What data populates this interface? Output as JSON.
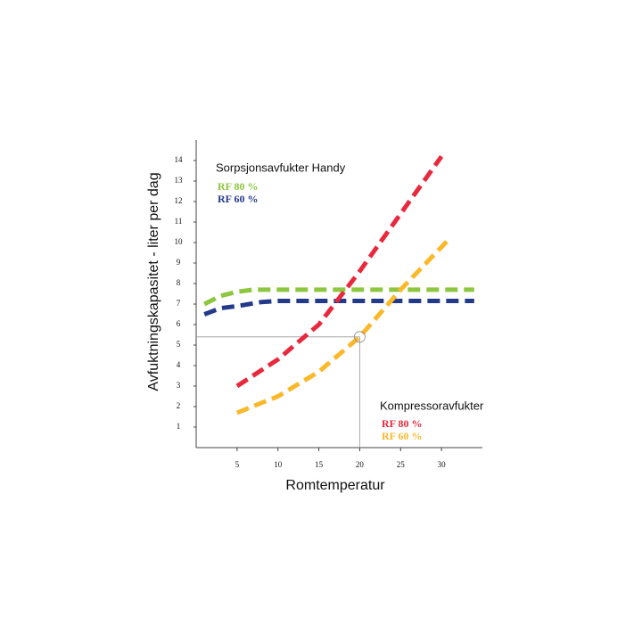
{
  "chart_data": {
    "type": "line",
    "x_label": "Romtemperatur",
    "y_label": "Avfuktningskapasitet  - liter per dag",
    "xlim": [
      0,
      35
    ],
    "ylim": [
      0,
      15
    ],
    "xticks": [
      5,
      10,
      15,
      20,
      25,
      30
    ],
    "yticks": [
      1,
      2,
      3,
      4,
      5,
      6,
      7,
      8,
      9,
      10,
      11,
      12,
      13,
      14
    ],
    "groups": [
      {
        "title": "Sorpsjonsavfukter Handy",
        "series": [
          {
            "name": "RF 80 %",
            "color": "#8dc63f",
            "x": [
              1,
              3,
              5,
              7,
              10,
              15,
              20,
              25,
              30,
              34
            ],
            "values": [
              7.0,
              7.4,
              7.6,
              7.7,
              7.7,
              7.7,
              7.7,
              7.7,
              7.7,
              7.7
            ]
          },
          {
            "name": "RF 60 %",
            "color": "#233a8b",
            "x": [
              1,
              3,
              5,
              8,
              10,
              15,
              20,
              25,
              30,
              34
            ],
            "values": [
              6.5,
              6.8,
              6.9,
              7.1,
              7.15,
              7.15,
              7.15,
              7.15,
              7.15,
              7.15
            ]
          }
        ]
      },
      {
        "title": "Kompressoravfukter",
        "series": [
          {
            "name": "RF 80 %",
            "color": "#e8283c",
            "x": [
              5,
              10,
              15,
              20,
              25,
              30
            ],
            "values": [
              3.0,
              4.3,
              6.0,
              8.6,
              11.4,
              14.2
            ]
          },
          {
            "name": "RF 60 %",
            "color": "#fbb829",
            "x": [
              5,
              10,
              15,
              20,
              25,
              31
            ],
            "values": [
              1.7,
              2.5,
              3.7,
              5.4,
              7.7,
              10.2
            ]
          }
        ]
      }
    ],
    "reference": {
      "x": 20,
      "y": 5.4
    }
  }
}
